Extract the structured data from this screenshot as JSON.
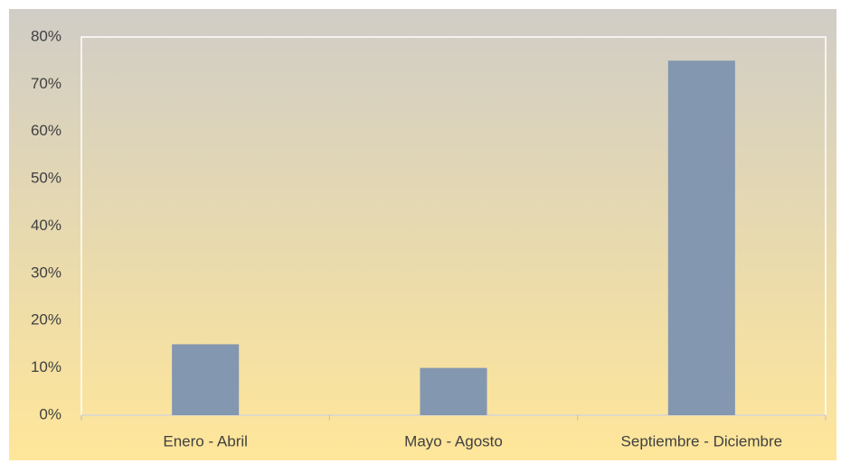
{
  "chart_data": {
    "type": "bar",
    "categories": [
      "Enero - Abril",
      "Mayo - Agosto",
      "Septiembre - Diciembre"
    ],
    "values": [
      15,
      10,
      75
    ],
    "color": "#8497b0",
    "ylim": [
      0,
      80
    ],
    "yticks": [
      {
        "value": 0,
        "label": "0%"
      },
      {
        "value": 10,
        "label": "10%"
      },
      {
        "value": 20,
        "label": "20%"
      },
      {
        "value": 30,
        "label": "30%"
      },
      {
        "value": 40,
        "label": "40%"
      },
      {
        "value": 50,
        "label": "50%"
      },
      {
        "value": 60,
        "label": "60%"
      },
      {
        "value": 70,
        "label": "70%"
      },
      {
        "value": 80,
        "label": "80%"
      }
    ],
    "grid": false
  }
}
